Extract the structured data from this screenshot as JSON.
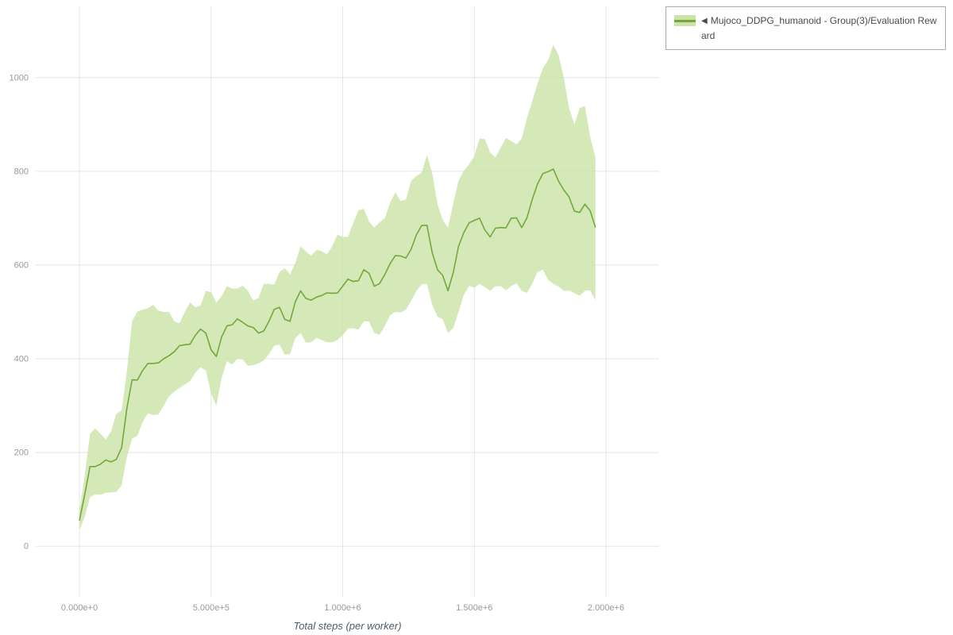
{
  "legend": {
    "marker": "◀",
    "label": "Mujoco_DDPG_humanoid - Group(3)/Evaluation Reward"
  },
  "axes": {
    "x_label": "Total steps (per worker)",
    "x_ticks": [
      "0.000e+0",
      "5.000e+5",
      "1.000e+6",
      "1.500e+6",
      "2.000e+6"
    ],
    "y_ticks": [
      "0",
      "200",
      "400",
      "600",
      "800",
      "1000"
    ]
  },
  "colors": {
    "line": "#71a83c",
    "band": "#cbe3a6",
    "grid": "#e4e4e4",
    "tick_text": "#999999",
    "axis_label": "#4e5d68",
    "legend_border": "#aaaaaa",
    "legend_text": "#4a4a4a"
  },
  "chart_data": {
    "type": "line",
    "title": "",
    "xlabel": "Total steps (per worker)",
    "ylabel": "",
    "xlim": [
      -166000,
      2202000
    ],
    "ylim": [
      -108,
      1152
    ],
    "grid": true,
    "legend_position": "outside-top-right",
    "x_tick_values": [
      0,
      500000,
      1000000,
      1500000,
      2000000
    ],
    "y_tick_values": [
      0,
      200,
      400,
      600,
      800,
      1000
    ],
    "x": [
      0,
      40000,
      80000,
      120000,
      160000,
      200000,
      240000,
      280000,
      320000,
      360000,
      400000,
      440000,
      480000,
      520000,
      560000,
      600000,
      640000,
      680000,
      720000,
      760000,
      800000,
      840000,
      880000,
      920000,
      960000,
      1000000,
      1040000,
      1080000,
      1120000,
      1160000,
      1200000,
      1240000,
      1280000,
      1320000,
      1360000,
      1400000,
      1440000,
      1480000,
      1520000,
      1560000,
      1600000,
      1640000,
      1680000,
      1720000,
      1760000,
      1800000,
      1840000,
      1880000,
      1920000,
      1960000
    ],
    "series": [
      {
        "name": "Mujoco_DDPG_humanoid - Group(3)/Evaluation Reward",
        "values": [
          55,
          170,
          175,
          180,
          210,
          355,
          375,
          390,
          400,
          415,
          430,
          450,
          455,
          405,
          470,
          485,
          470,
          455,
          480,
          510,
          480,
          545,
          525,
          535,
          540,
          555,
          565,
          590,
          555,
          580,
          620,
          615,
          665,
          685,
          590,
          545,
          640,
          690,
          700,
          660,
          680,
          700,
          680,
          740,
          795,
          805,
          760,
          715,
          730,
          680
        ],
        "upper": [
          75,
          240,
          240,
          245,
          290,
          480,
          505,
          515,
          500,
          480,
          500,
          510,
          545,
          520,
          555,
          550,
          545,
          530,
          560,
          585,
          580,
          640,
          620,
          630,
          640,
          660,
          690,
          720,
          680,
          700,
          755,
          740,
          790,
          835,
          730,
          680,
          780,
          815,
          870,
          840,
          850,
          865,
          870,
          950,
          1020,
          1070,
          1000,
          900,
          940,
          830
        ],
        "lower": [
          35,
          105,
          110,
          115,
          130,
          230,
          265,
          280,
          300,
          330,
          345,
          370,
          375,
          300,
          395,
          400,
          385,
          390,
          410,
          430,
          410,
          455,
          435,
          440,
          435,
          450,
          465,
          480,
          455,
          470,
          500,
          505,
          545,
          560,
          490,
          455,
          500,
          555,
          560,
          545,
          555,
          555,
          545,
          560,
          590,
          560,
          545,
          540,
          545,
          525
        ]
      }
    ]
  }
}
